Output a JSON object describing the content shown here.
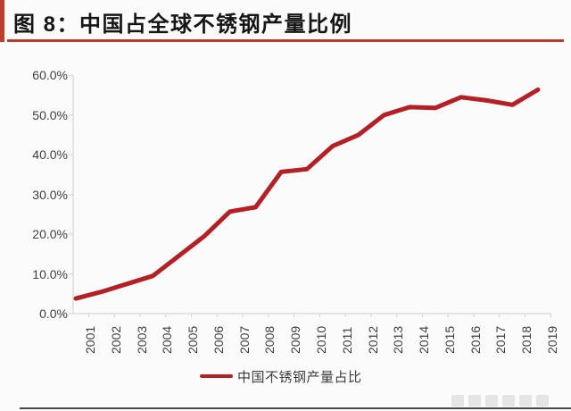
{
  "header": {
    "title": "图 8：中国占全球不锈钢产量比例"
  },
  "colors": {
    "accent_red": "#bf3b2b",
    "line_red": "#b32025",
    "axis_gray": "#d6d6d6",
    "label_gray": "#3f3f3f"
  },
  "chart_data": {
    "type": "line",
    "title": "中国占全球不锈钢产量比例",
    "categories": [
      "2001",
      "2002",
      "2003",
      "2004",
      "2005",
      "2006",
      "2007",
      "2008",
      "2009",
      "2010",
      "2011",
      "2012",
      "2013",
      "2014",
      "2015",
      "2016",
      "2017",
      "2018",
      "2019"
    ],
    "series": [
      {
        "name": "中国不锈钢产量占比",
        "color": "#b32025",
        "values": [
          3.8,
          5.5,
          7.5,
          9.5,
          14.5,
          19.5,
          25.7,
          26.8,
          35.7,
          36.4,
          42.2,
          45.0,
          50.0,
          52.0,
          51.8,
          54.5,
          53.7,
          52.6,
          56.4
        ]
      }
    ],
    "xlabel": "",
    "ylabel": "",
    "ylim": [
      0,
      60
    ],
    "ytick_step": 10,
    "yticks": [
      "0.0%",
      "10.0%",
      "20.0%",
      "30.0%",
      "40.0%",
      "50.0%",
      "60.0%"
    ],
    "grid": false,
    "legend_position": "bottom"
  }
}
